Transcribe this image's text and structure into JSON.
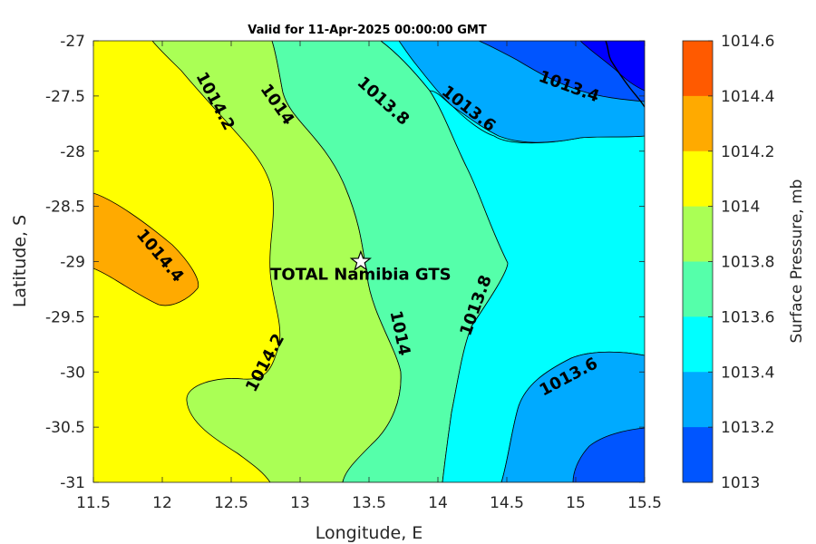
{
  "title": "Valid for 11-Apr-2025 00:00:00 GMT",
  "chart_data": {
    "type": "contour-map",
    "xlabel": "Longitude, E",
    "ylabel": "Latitude, S",
    "xlim": [
      11.5,
      15.5
    ],
    "ylim": [
      -31,
      -27
    ],
    "xticks": [
      "11.5",
      "12",
      "12.5",
      "13",
      "13.5",
      "14",
      "14.5",
      "15",
      "15.5"
    ],
    "yticks": [
      "-27",
      "-27.5",
      "-28",
      "-28.5",
      "-29",
      "-29.5",
      "-30",
      "-30.5",
      "-31"
    ],
    "contour_labels": [
      {
        "text": "1014.2",
        "lon": 12.38,
        "lat": -27.55
      },
      {
        "text": "1014",
        "lon": 12.83,
        "lat": -27.58
      },
      {
        "text": "1013.8",
        "lon": 13.6,
        "lat": -27.55
      },
      {
        "text": "1013.6",
        "lon": 14.22,
        "lat": -27.62
      },
      {
        "text": "1013.4",
        "lon": 14.95,
        "lat": -27.42
      },
      {
        "text": "1014.4",
        "lon": 11.98,
        "lat": -28.95
      },
      {
        "text": "1014.2",
        "lon": 12.75,
        "lat": -29.92
      },
      {
        "text": "1014",
        "lon": 13.72,
        "lat": -29.65
      },
      {
        "text": "1013.8",
        "lon": 14.28,
        "lat": -29.4
      },
      {
        "text": "1013.6",
        "lon": 14.95,
        "lat": -30.05
      }
    ],
    "site": {
      "name": "TOTAL Namibia GTS",
      "lon": 13.44,
      "lat": -29.0
    }
  },
  "colorbar": {
    "label": "Surface Pressure, mb",
    "ticks": [
      "1014.6",
      "1014.4",
      "1014.2",
      "1014",
      "1013.8",
      "1013.6",
      "1013.4",
      "1013.2",
      "1013"
    ],
    "colors": [
      "#ff5a00",
      "#ffaa00",
      "#ffff00",
      "#aaff55",
      "#55ffaa",
      "#00ffff",
      "#00aaff",
      "#0055ff",
      "#0000ff"
    ]
  }
}
